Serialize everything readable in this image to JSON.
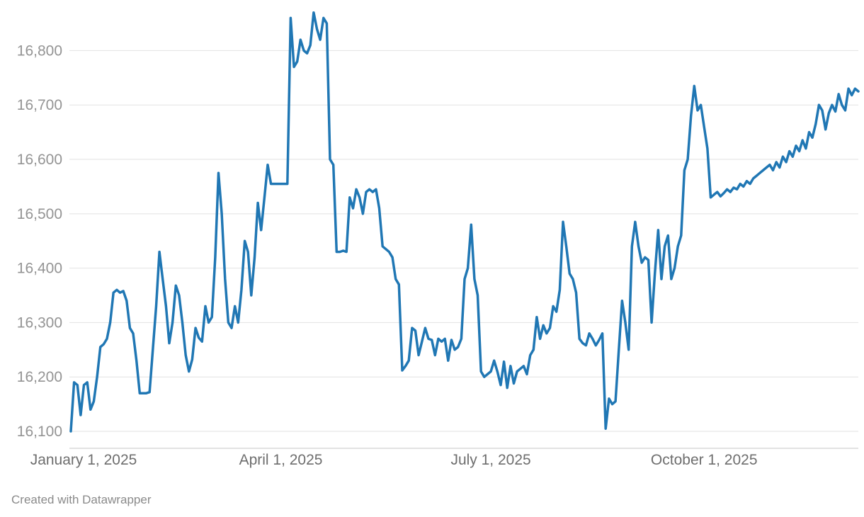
{
  "footer": {
    "credit": "Created with Datawrapper"
  },
  "colors": {
    "line": "#2077b4",
    "grid": "#e2e2e2",
    "axis": "#c6c6c6",
    "y_tick_text": "#949494",
    "x_tick_text": "#6e6e6e",
    "footer_text": "#8a8a8a",
    "background": "#ffffff"
  },
  "chart_data": {
    "type": "line",
    "x_tick_labels_note": "daily time series, January 1 2025 through early December 2025",
    "x_ticks": [
      {
        "label": "January 1, 2025",
        "index": 0
      },
      {
        "label": "April 1, 2025",
        "index": 64
      },
      {
        "label": "July 1, 2025",
        "index": 128
      },
      {
        "label": "October 1, 2025",
        "index": 193
      }
    ],
    "y_ticks": [
      {
        "label": "16,100",
        "value": 16100
      },
      {
        "label": "16,200",
        "value": 16200
      },
      {
        "label": "16,300",
        "value": 16300
      },
      {
        "label": "16,400",
        "value": 16400
      },
      {
        "label": "16,500",
        "value": 16500
      },
      {
        "label": "16,600",
        "value": 16600
      },
      {
        "label": "16,700",
        "value": 16700
      },
      {
        "label": "16,800",
        "value": 16800
      }
    ],
    "ylim": [
      16100,
      16880
    ],
    "grid": true,
    "legend": "none",
    "values": [
      16100,
      16190,
      16185,
      16130,
      16185,
      16190,
      16140,
      16155,
      16200,
      16255,
      16260,
      16270,
      16300,
      16355,
      16360,
      16355,
      16358,
      16340,
      16290,
      16280,
      16230,
      16170,
      16170,
      16170,
      16172,
      16250,
      16330,
      16430,
      16380,
      16330,
      16262,
      16300,
      16368,
      16350,
      16300,
      16240,
      16210,
      16232,
      16290,
      16272,
      16265,
      16330,
      16300,
      16310,
      16420,
      16575,
      16500,
      16380,
      16300,
      16290,
      16330,
      16300,
      16360,
      16450,
      16430,
      16350,
      16420,
      16520,
      16470,
      16530,
      16590,
      16555,
      16555,
      16555,
      16555,
      16555,
      16555,
      16860,
      16770,
      16780,
      16820,
      16800,
      16795,
      16810,
      16870,
      16840,
      16820,
      16860,
      16850,
      16600,
      16590,
      16430,
      16430,
      16432,
      16430,
      16530,
      16510,
      16545,
      16530,
      16500,
      16540,
      16545,
      16540,
      16545,
      16510,
      16440,
      16435,
      16430,
      16420,
      16380,
      16370,
      16212,
      16220,
      16230,
      16290,
      16285,
      16240,
      16265,
      16290,
      16270,
      16268,
      16240,
      16270,
      16265,
      16270,
      16230,
      16268,
      16250,
      16255,
      16270,
      16380,
      16400,
      16480,
      16380,
      16350,
      16210,
      16200,
      16205,
      16210,
      16230,
      16210,
      16185,
      16228,
      16180,
      16220,
      16188,
      16210,
      16215,
      16220,
      16205,
      16240,
      16250,
      16310,
      16270,
      16295,
      16280,
      16290,
      16330,
      16320,
      16360,
      16485,
      16440,
      16390,
      16380,
      16355,
      16270,
      16262,
      16258,
      16280,
      16270,
      16258,
      16268,
      16280,
      16105,
      16160,
      16150,
      16155,
      16250,
      16340,
      16300,
      16250,
      16440,
      16485,
      16440,
      16410,
      16420,
      16415,
      16300,
      16390,
      16470,
      16380,
      16440,
      16460,
      16380,
      16400,
      16440,
      16460,
      16580,
      16600,
      16680,
      16735,
      16690,
      16700,
      16660,
      16620,
      16530,
      16535,
      16540,
      16532,
      16538,
      16545,
      16540,
      16548,
      16545,
      16555,
      16550,
      16560,
      16555,
      16565,
      16570,
      16575,
      16580,
      16585,
      16590,
      16580,
      16595,
      16585,
      16605,
      16595,
      16615,
      16605,
      16625,
      16615,
      16635,
      16620,
      16650,
      16640,
      16665,
      16700,
      16690,
      16655,
      16685,
      16700,
      16688,
      16720,
      16700,
      16690,
      16730,
      16718,
      16730,
      16725
    ]
  }
}
